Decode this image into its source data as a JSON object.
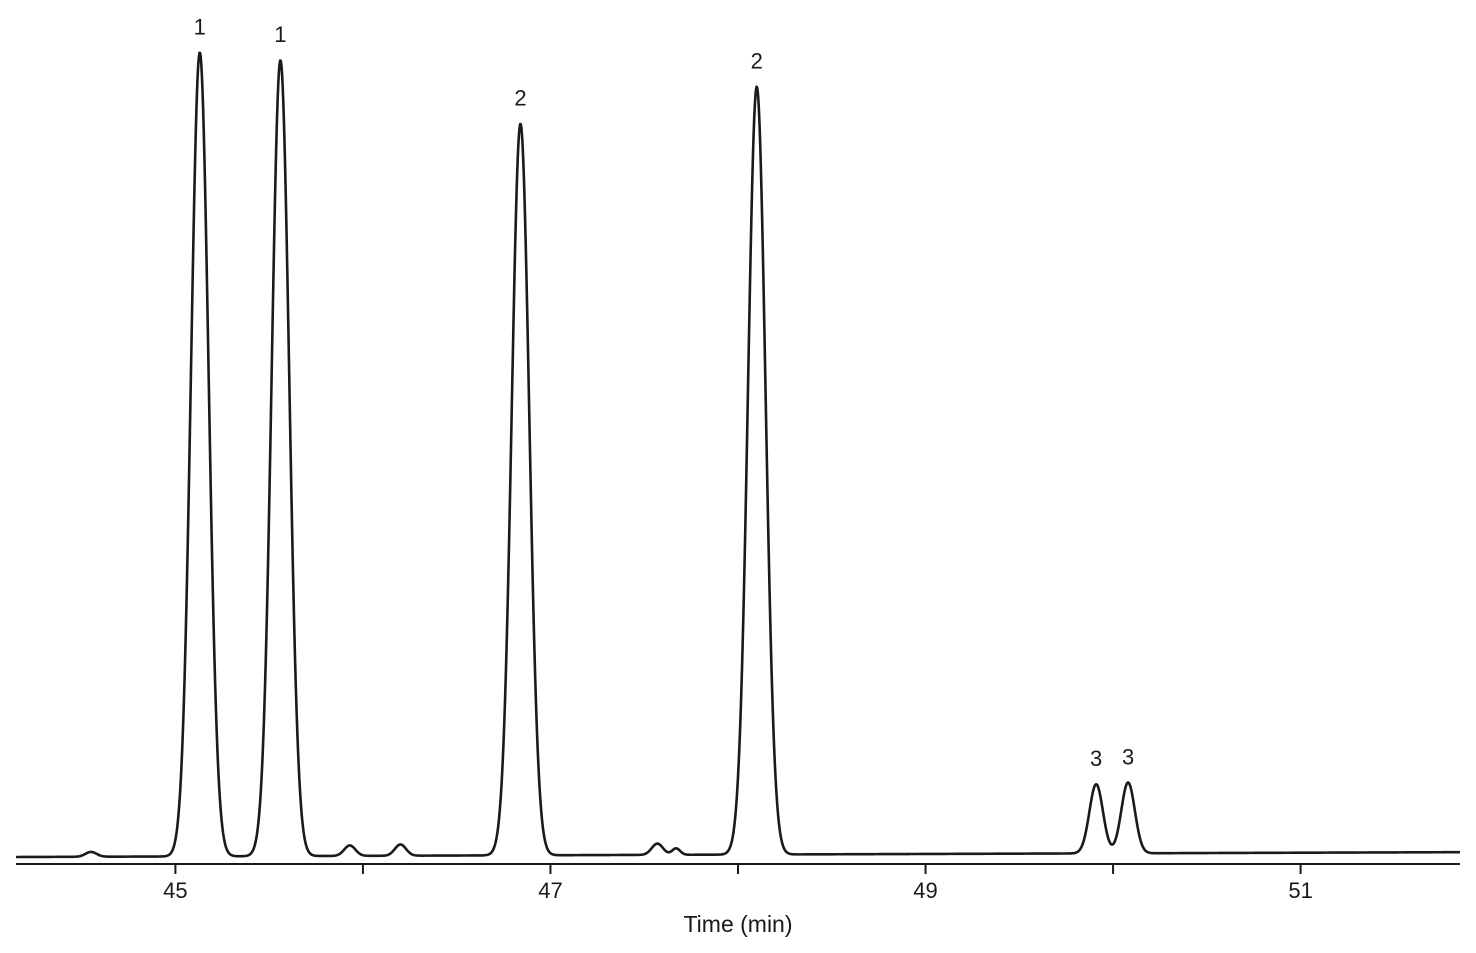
{
  "chart_data": {
    "type": "line",
    "xlabel": "Time (min)",
    "ylabel": "",
    "xlim": [
      44.15,
      51.85
    ],
    "ylim": [
      0,
      100
    ],
    "x_ticks_labeled": [
      45,
      47,
      49,
      51
    ],
    "x_ticks_minor": [
      46,
      48,
      50
    ],
    "grid": false,
    "legend": "none",
    "baseline": [
      {
        "x": 44.15,
        "y": 0.0
      },
      {
        "x": 51.85,
        "y": 0.6
      }
    ],
    "peaks": [
      {
        "label": "1",
        "rt": 45.13,
        "height": 100.0,
        "width": 0.11
      },
      {
        "label": "1",
        "rt": 45.56,
        "height": 99.0,
        "width": 0.11
      },
      {
        "label": "2",
        "rt": 46.84,
        "height": 91.0,
        "width": 0.11
      },
      {
        "label": "2",
        "rt": 48.1,
        "height": 95.5,
        "width": 0.11
      },
      {
        "label": "3",
        "rt": 49.91,
        "height": 8.6,
        "width": 0.085
      },
      {
        "label": "3",
        "rt": 50.08,
        "height": 8.8,
        "width": 0.085
      }
    ],
    "minor_peaks": [
      {
        "rt": 44.55,
        "height": 0.6,
        "width": 0.07
      },
      {
        "rt": 45.93,
        "height": 1.3,
        "width": 0.07
      },
      {
        "rt": 46.2,
        "height": 1.4,
        "width": 0.07
      },
      {
        "rt": 47.57,
        "height": 1.4,
        "width": 0.07
      },
      {
        "rt": 47.67,
        "height": 0.8,
        "width": 0.05
      }
    ],
    "colors": {
      "line": "#1a1a1a",
      "background": "#ffffff"
    }
  }
}
